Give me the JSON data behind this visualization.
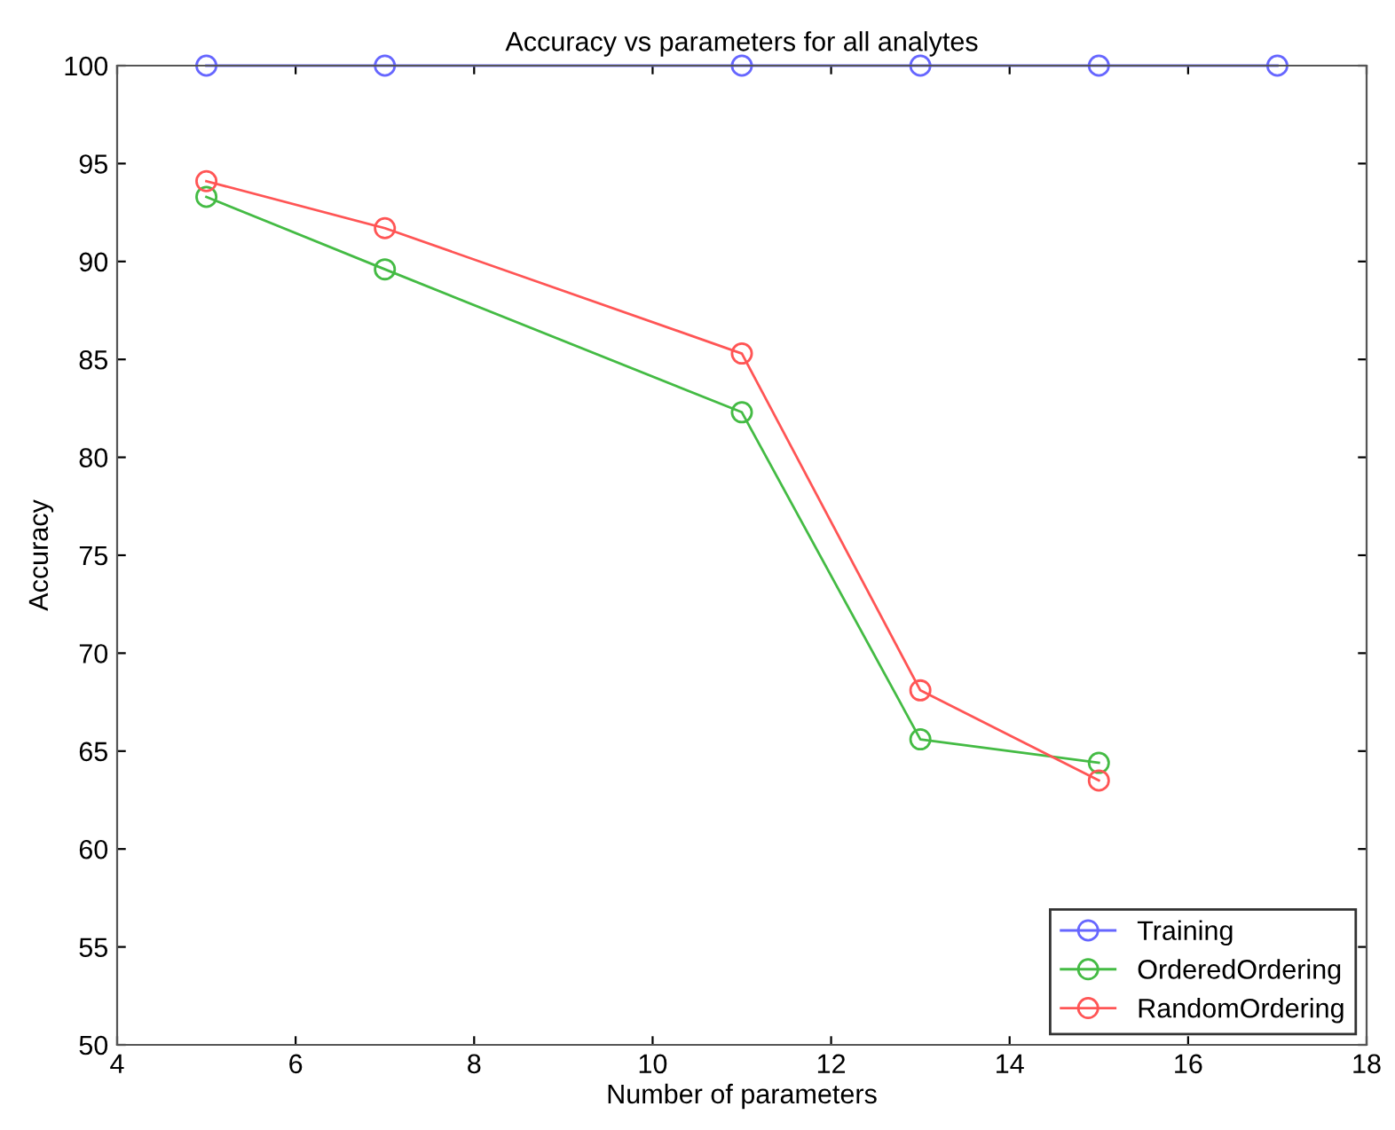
{
  "chart_data": {
    "type": "line",
    "title": "Accuracy vs parameters for all analytes",
    "xlabel": "Number of parameters",
    "ylabel": "Accuracy",
    "x": [
      5,
      7,
      11,
      13,
      15,
      17
    ],
    "series": [
      {
        "name": "Training",
        "color": "#6666ff",
        "values": [
          100,
          100,
          100,
          100,
          100,
          100
        ]
      },
      {
        "name": "OrderedOrdering",
        "color": "#44bb44",
        "values": [
          93.3,
          89.6,
          82.3,
          65.6,
          64.4,
          null
        ]
      },
      {
        "name": "RandomOrdering",
        "color": "#ff5555",
        "values": [
          94.1,
          91.7,
          85.3,
          68.1,
          63.5,
          null
        ]
      }
    ],
    "xlim": [
      4,
      18
    ],
    "xticks": [
      4,
      6,
      8,
      10,
      12,
      14,
      16,
      18
    ],
    "ylim": [
      50,
      100
    ],
    "yticks": [
      50,
      55,
      60,
      65,
      70,
      75,
      80,
      85,
      90,
      95,
      100
    ],
    "grid": false,
    "legend": "bottom right",
    "marker": "circle",
    "line_style": "solid"
  }
}
